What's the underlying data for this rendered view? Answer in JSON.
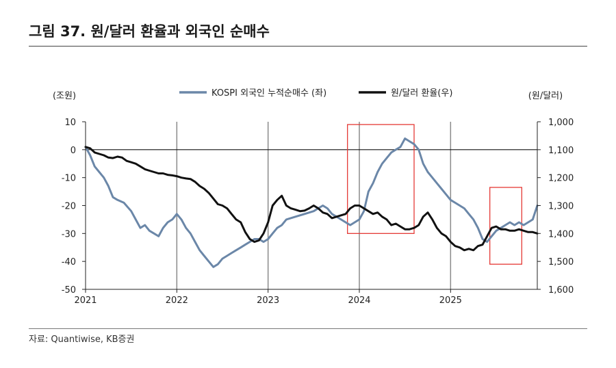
{
  "figure": {
    "title": "그림 37. 원/달러 환율과 외국인 순매수",
    "source": "자료: Quantiwise, KB증권"
  },
  "chart_data": {
    "type": "line",
    "legend": [
      "KOSPI 외국인 누적순매수 (좌)",
      "원/달러 환율(우)"
    ],
    "left_axis": {
      "unit": "(조원)",
      "ticks": [
        "10",
        "0",
        "-10",
        "-20",
        "-30",
        "-40",
        "-50"
      ],
      "ylim": [
        -50,
        10
      ]
    },
    "right_axis": {
      "unit": "(원/달러)",
      "ticks": [
        "1,000",
        "1,100",
        "1,200",
        "1,300",
        "1,400",
        "1,500",
        "1,600"
      ],
      "ylim": [
        1000,
        1600
      ],
      "inverted": true
    },
    "x_axis": {
      "ticks": [
        "2021",
        "2022",
        "2023",
        "2024",
        "2025"
      ],
      "xlim": [
        2021.0,
        2025.95
      ]
    },
    "series": [
      {
        "name": "KOSPI 외국인 누적순매수 (좌)",
        "axis": "left",
        "color": "#6b87a8",
        "x": [
          2021.0,
          2021.05,
          2021.1,
          2021.15,
          2021.2,
          2021.25,
          2021.3,
          2021.35,
          2021.42,
          2021.5,
          2021.55,
          2021.6,
          2021.65,
          2021.7,
          2021.75,
          2021.8,
          2021.85,
          2021.9,
          2021.95,
          2022.0,
          2022.05,
          2022.1,
          2022.15,
          2022.2,
          2022.25,
          2022.3,
          2022.35,
          2022.4,
          2022.45,
          2022.5,
          2022.55,
          2022.6,
          2022.65,
          2022.7,
          2022.75,
          2022.8,
          2022.85,
          2022.9,
          2022.95,
          2023.0,
          2023.05,
          2023.1,
          2023.15,
          2023.2,
          2023.3,
          2023.4,
          2023.5,
          2023.55,
          2023.6,
          2023.65,
          2023.7,
          2023.75,
          2023.8,
          2023.85,
          2023.9,
          2023.95,
          2024.0,
          2024.05,
          2024.1,
          2024.15,
          2024.2,
          2024.25,
          2024.3,
          2024.35,
          2024.4,
          2024.45,
          2024.5,
          2024.55,
          2024.6,
          2024.65,
          2024.7,
          2024.75,
          2024.8,
          2024.85,
          2024.9,
          2024.95,
          2025.0,
          2025.05,
          2025.1,
          2025.15,
          2025.2,
          2025.25,
          2025.3,
          2025.35,
          2025.4,
          2025.45,
          2025.5,
          2025.55,
          2025.6,
          2025.65,
          2025.7,
          2025.75,
          2025.8,
          2025.85,
          2025.9,
          2025.95
        ],
        "values": [
          1,
          -2,
          -6,
          -8,
          -10,
          -13,
          -17,
          -18,
          -19,
          -22,
          -25,
          -28,
          -27,
          -29,
          -30,
          -31,
          -28,
          -26,
          -25,
          -23,
          -25,
          -28,
          -30,
          -33,
          -36,
          -38,
          -40,
          -42,
          -41,
          -39,
          -38,
          -37,
          -36,
          -35,
          -34,
          -33,
          -32,
          -32,
          -33,
          -32,
          -30,
          -28,
          -27,
          -25,
          -24,
          -23,
          -22,
          -21,
          -20,
          -21,
          -23,
          -24,
          -25,
          -26,
          -27,
          -26,
          -25,
          -22,
          -15,
          -12,
          -8,
          -5,
          -3,
          -1,
          0,
          1,
          4,
          3,
          2,
          0,
          -5,
          -8,
          -10,
          -12,
          -14,
          -16,
          -18,
          -19,
          -20,
          -21,
          -23,
          -25,
          -28,
          -32,
          -33,
          -31,
          -29,
          -28,
          -27,
          -26,
          -27,
          -26,
          -27,
          -26,
          -25,
          -20
        ]
      },
      {
        "name": "원/달러 환율(우)",
        "axis": "right",
        "color": "#111111",
        "x": [
          2021.0,
          2021.05,
          2021.1,
          2021.15,
          2021.2,
          2021.25,
          2021.3,
          2021.35,
          2021.4,
          2021.45,
          2021.5,
          2021.55,
          2021.6,
          2021.65,
          2021.7,
          2021.75,
          2021.8,
          2021.85,
          2021.9,
          2021.95,
          2022.0,
          2022.05,
          2022.1,
          2022.15,
          2022.2,
          2022.25,
          2022.3,
          2022.35,
          2022.4,
          2022.45,
          2022.5,
          2022.55,
          2022.6,
          2022.65,
          2022.7,
          2022.75,
          2022.8,
          2022.85,
          2022.9,
          2022.95,
          2023.0,
          2023.05,
          2023.1,
          2023.15,
          2023.2,
          2023.25,
          2023.3,
          2023.35,
          2023.4,
          2023.45,
          2023.5,
          2023.55,
          2023.6,
          2023.65,
          2023.7,
          2023.75,
          2023.8,
          2023.85,
          2023.9,
          2023.95,
          2024.0,
          2024.05,
          2024.1,
          2024.15,
          2024.2,
          2024.25,
          2024.3,
          2024.35,
          2024.4,
          2024.45,
          2024.5,
          2024.55,
          2024.6,
          2024.65,
          2024.7,
          2024.75,
          2024.8,
          2024.85,
          2024.9,
          2024.95,
          2025.0,
          2025.05,
          2025.1,
          2025.15,
          2025.2,
          2025.25,
          2025.3,
          2025.35,
          2025.4,
          2025.45,
          2025.5,
          2025.55,
          2025.6,
          2025.65,
          2025.7,
          2025.75,
          2025.8,
          2025.85,
          2025.9,
          2025.95
        ],
        "values": [
          1090,
          1095,
          1110,
          1115,
          1120,
          1128,
          1130,
          1125,
          1128,
          1140,
          1145,
          1150,
          1160,
          1170,
          1175,
          1180,
          1185,
          1185,
          1190,
          1192,
          1195,
          1200,
          1203,
          1205,
          1215,
          1230,
          1240,
          1255,
          1275,
          1295,
          1300,
          1310,
          1330,
          1350,
          1360,
          1395,
          1420,
          1430,
          1425,
          1400,
          1360,
          1300,
          1280,
          1265,
          1300,
          1310,
          1315,
          1320,
          1318,
          1310,
          1300,
          1310,
          1325,
          1330,
          1345,
          1340,
          1335,
          1330,
          1310,
          1300,
          1300,
          1310,
          1320,
          1330,
          1325,
          1340,
          1350,
          1370,
          1365,
          1375,
          1385,
          1385,
          1380,
          1370,
          1340,
          1325,
          1350,
          1380,
          1400,
          1410,
          1430,
          1445,
          1450,
          1460,
          1455,
          1460,
          1445,
          1440,
          1410,
          1380,
          1375,
          1385,
          1385,
          1390,
          1390,
          1385,
          1390,
          1395,
          1395,
          1400
        ]
      }
    ],
    "annotations": [
      {
        "type": "rect",
        "x_range": [
          2023.87,
          2024.6
        ],
        "right_axis_range": [
          1010,
          1400
        ],
        "color": "#e53935"
      },
      {
        "type": "rect",
        "x_range": [
          2025.43,
          2025.78
        ],
        "right_axis_range": [
          1235,
          1510
        ],
        "color": "#e53935"
      }
    ],
    "grid": {
      "vertical": true,
      "zero_line": true
    }
  }
}
